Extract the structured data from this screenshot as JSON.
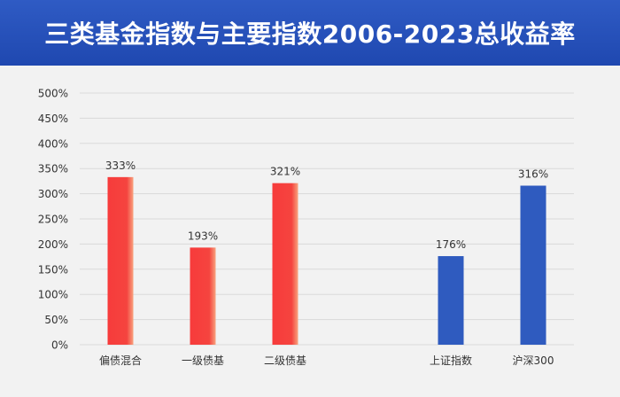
{
  "title": "三类基金指数与主要指数2006-2023总收益率",
  "colors": {
    "header_bg": "#1f48b0",
    "fund_bar": "#f5443f",
    "index_bar": "#2f5bbf",
    "grid": "#d9d9d9",
    "text": "#333333"
  },
  "chart_data": {
    "type": "bar",
    "title": "三类基金指数与主要指数2006-2023总收益率",
    "xlabel": "",
    "ylabel": "",
    "ylim": [
      0,
      500
    ],
    "yticks": [
      0,
      50,
      100,
      150,
      200,
      250,
      300,
      350,
      400,
      450,
      500
    ],
    "ytick_labels": [
      "0%",
      "50%",
      "100%",
      "150%",
      "200%",
      "250%",
      "300%",
      "350%",
      "400%",
      "450%",
      "500%"
    ],
    "grid": true,
    "categories": [
      "偏债混合",
      "一级债基",
      "二级债基",
      "上证指数",
      "沪深300"
    ],
    "values": [
      333,
      193,
      321,
      176,
      316
    ],
    "value_labels": [
      "333%",
      "193%",
      "321%",
      "176%",
      "316%"
    ],
    "groups": [
      "fund",
      "fund",
      "fund",
      "index",
      "index"
    ]
  }
}
